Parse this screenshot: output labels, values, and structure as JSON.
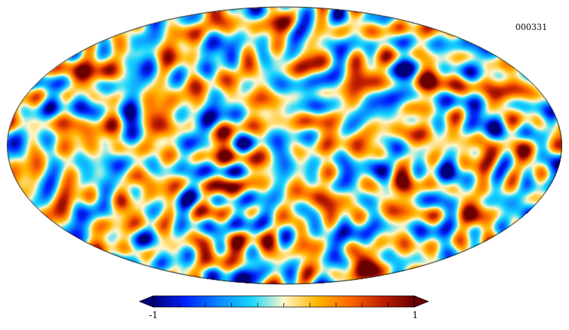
{
  "map": {
    "id_label": "000331",
    "projection": "mollweide",
    "colormap": [
      "#00007a",
      "#0022ff",
      "#0a86ff",
      "#16d6ff",
      "#fff7cc",
      "#ffb600",
      "#ff6a00",
      "#c21f00",
      "#6b0000"
    ]
  },
  "colorbar": {
    "min_label": "-1",
    "max_label": "1",
    "tick_count": 11
  }
}
